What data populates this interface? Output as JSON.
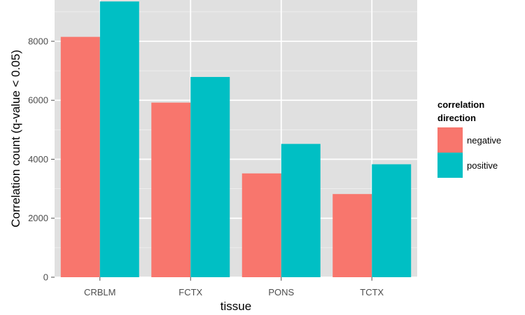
{
  "chart_data": {
    "type": "bar",
    "title": "",
    "xlabel": "tissue",
    "ylabel": "Correlation count (q-value < 0.05)",
    "categories": [
      "CRBLM",
      "FCTX",
      "PONS",
      "TCTX"
    ],
    "series": [
      {
        "name": "negative",
        "color": "#F8766D",
        "values": [
          8150,
          5920,
          3520,
          2820
        ]
      },
      {
        "name": "positive",
        "color": "#00BFC4",
        "values": [
          9350,
          6790,
          4520,
          3830
        ]
      }
    ],
    "ylim": [
      0,
      9400
    ],
    "yticks": [
      0,
      2000,
      4000,
      6000,
      8000
    ],
    "grid": true,
    "legend": {
      "title": "correlation direction",
      "placement": "right"
    },
    "panel_color": "#E0E0E0"
  }
}
